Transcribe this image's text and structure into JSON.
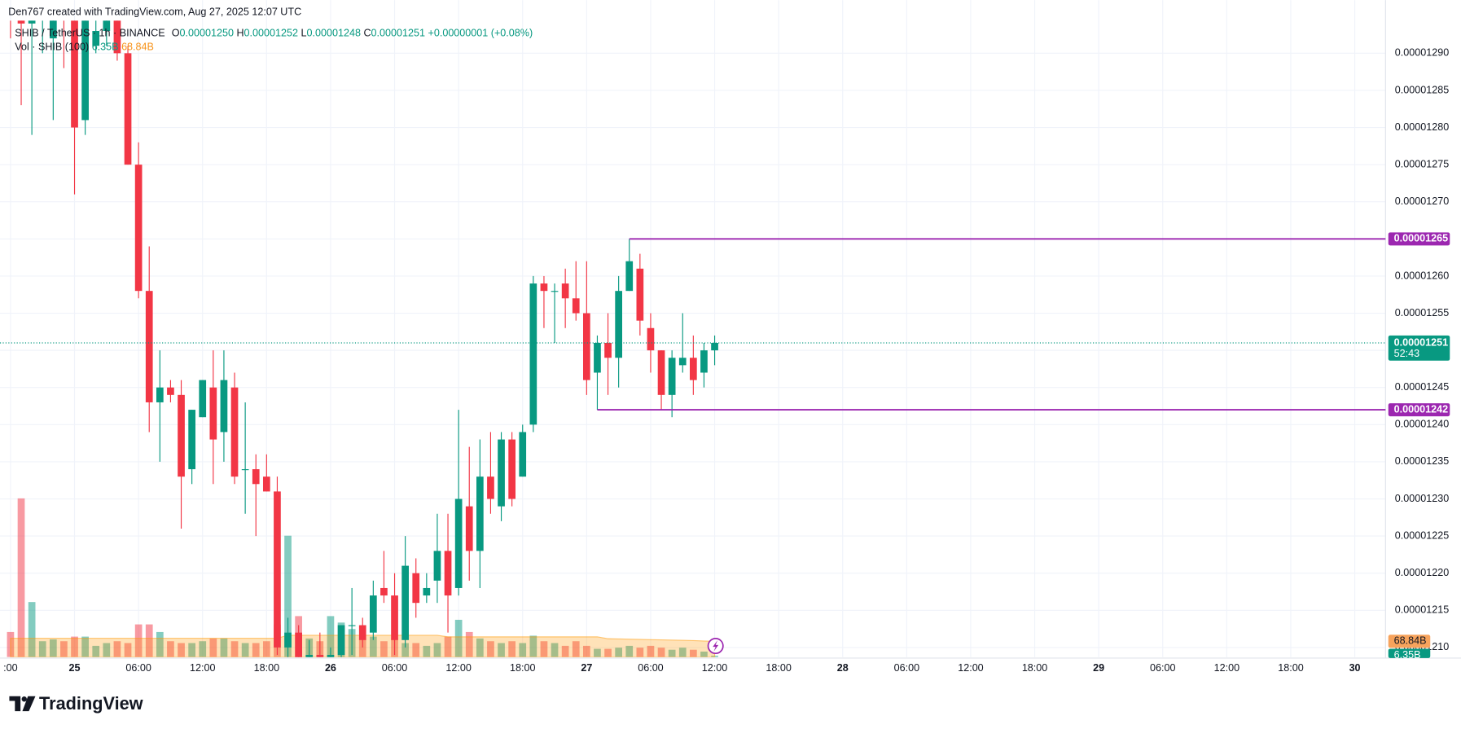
{
  "header": {
    "credit": "Den767 created with TradingView.com, Aug 27, 2025 12:07 UTC"
  },
  "footer": {
    "brand": "TradingView"
  },
  "chart_data": {
    "type": "candlestick",
    "title": "SHIB / TetherUS · 1h · BINANCE",
    "ohlc_legend": [
      {
        "label": "O",
        "value": "0.00001250"
      },
      {
        "label": "H",
        "value": "0.00001252"
      },
      {
        "label": "L",
        "value": "0.00001248"
      },
      {
        "label": "C",
        "value": "0.00001251"
      }
    ],
    "change": "+0.00000001 (+0.08%)",
    "volume_title": "Vol · SHIB (100)",
    "volume_value_label": "6.35B",
    "volume_ma_label": "68.84B",
    "x_labels": [
      ":00",
      "25",
      "06:00",
      "12:00",
      "18:00",
      "26",
      "06:00",
      "12:00",
      "18:00",
      "27",
      "06:00",
      "12:00",
      "18:00",
      "28",
      "06:00",
      "12:00",
      "18:00",
      "29",
      "06:00",
      "12:00",
      "18:00",
      "30"
    ],
    "open": [
      1.3e-05,
      1.296e-05,
      1.294e-05,
      1.297e-05,
      1.292e-05,
      1.298e-05,
      1.296e-05,
      1.281e-05,
      1.291e-05,
      1.293e-05,
      1.295e-05,
      1.29e-05,
      1.275e-05,
      1.258e-05,
      1.243e-05,
      1.245e-05,
      1.244e-05,
      1.234e-05,
      1.241e-05,
      1.245e-05,
      1.239e-05,
      1.245e-05,
      1.234e-05,
      1.234e-05,
      1.233e-05,
      1.231e-05,
      1.21e-05,
      1.212e-05,
      1.207e-05,
      1.209e-05,
      1.206e-05,
      1.209e-05,
      1.213e-05,
      1.213e-05,
      1.212e-05,
      1.218e-05,
      1.217e-05,
      1.211e-05,
      1.22e-05,
      1.217e-05,
      1.219e-05,
      1.223e-05,
      1.218e-05,
      1.229e-05,
      1.223e-05,
      1.233e-05,
      1.229e-05,
      1.238e-05,
      1.233e-05,
      1.24e-05,
      1.259e-05,
      1.258e-05,
      1.259e-05,
      1.257e-05,
      1.255e-05,
      1.247e-05,
      1.251e-05,
      1.249e-05,
      1.258e-05,
      1.261e-05,
      1.253e-05,
      1.25e-05,
      1.244e-05,
      1.248e-05,
      1.249e-05,
      1.247e-05,
      1.25e-05
    ],
    "high": [
      1.305e-05,
      1.3e-05,
      1.298e-05,
      1.302e-05,
      1.301e-05,
      1.3e-05,
      1.3e-05,
      1.298e-05,
      1.296e-05,
      1.298e-05,
      1.299e-05,
      1.291e-05,
      1.278e-05,
      1.264e-05,
      1.25e-05,
      1.246e-05,
      1.246e-05,
      1.242e-05,
      1.246e-05,
      1.25e-05,
      1.25e-05,
      1.247e-05,
      1.243e-05,
      1.236e-05,
      1.236e-05,
      1.233e-05,
      1.214e-05,
      1.213e-05,
      1.211e-05,
      1.212e-05,
      1.21e-05,
      1.213e-05,
      1.218e-05,
      1.214e-05,
      1.219e-05,
      1.223e-05,
      1.22e-05,
      1.225e-05,
      1.222e-05,
      1.22e-05,
      1.228e-05,
      1.228e-05,
      1.242e-05,
      1.237e-05,
      1.238e-05,
      1.239e-05,
      1.239e-05,
      1.239e-05,
      1.24e-05,
      1.26e-05,
      1.26e-05,
      1.259e-05,
      1.261e-05,
      1.262e-05,
      1.262e-05,
      1.252e-05,
      1.255e-05,
      1.26e-05,
      1.265e-05,
      1.263e-05,
      1.255e-05,
      1.25e-05,
      1.25e-05,
      1.255e-05,
      1.252e-05,
      1.251e-05,
      1.252e-05
    ],
    "low": [
      1.292e-05,
      1.283e-05,
      1.279e-05,
      1.29e-05,
      1.281e-05,
      1.288e-05,
      1.271e-05,
      1.279e-05,
      1.29e-05,
      1.291e-05,
      1.289e-05,
      1.275e-05,
      1.257e-05,
      1.239e-05,
      1.235e-05,
      1.243e-05,
      1.226e-05,
      1.232e-05,
      1.241e-05,
      1.232e-05,
      1.235e-05,
      1.232e-05,
      1.228e-05,
      1.225e-05,
      1.231e-05,
      1.209e-05,
      1.205e-05,
      1.204e-05,
      1.203e-05,
      1.204e-05,
      1.203e-05,
      1.206e-05,
      1.209e-05,
      1.21e-05,
      1.211e-05,
      1.216e-05,
      1.209e-05,
      1.21e-05,
      1.214e-05,
      1.216e-05,
      1.216e-05,
      1.212e-05,
      1.217e-05,
      1.219e-05,
      1.218e-05,
      1.228e-05,
      1.227e-05,
      1.229e-05,
      1.233e-05,
      1.239e-05,
      1.253e-05,
      1.251e-05,
      1.253e-05,
      1.254e-05,
      1.244e-05,
      1.242e-05,
      1.244e-05,
      1.245e-05,
      1.258e-05,
      1.252e-05,
      1.247e-05,
      1.242e-05,
      1.241e-05,
      1.247e-05,
      1.244e-05,
      1.245e-05,
      1.248e-05
    ],
    "close": [
      1.296e-05,
      1.294e-05,
      1.297e-05,
      1.299e-05,
      1.298e-05,
      1.296e-05,
      1.28e-05,
      1.296e-05,
      1.293e-05,
      1.295e-05,
      1.29e-05,
      1.275e-05,
      1.258e-05,
      1.243e-05,
      1.245e-05,
      1.244e-05,
      1.233e-05,
      1.242e-05,
      1.246e-05,
      1.238e-05,
      1.246e-05,
      1.233e-05,
      1.234e-05,
      1.232e-05,
      1.231e-05,
      1.21e-05,
      1.212e-05,
      1.207e-05,
      1.209e-05,
      1.206e-05,
      1.209e-05,
      1.213e-05,
      1.213e-05,
      1.211e-05,
      1.217e-05,
      1.217e-05,
      1.211e-05,
      1.221e-05,
      1.216e-05,
      1.218e-05,
      1.223e-05,
      1.217e-05,
      1.23e-05,
      1.223e-05,
      1.233e-05,
      1.23e-05,
      1.238e-05,
      1.23e-05,
      1.239e-05,
      1.259e-05,
      1.258e-05,
      1.258e-05,
      1.257e-05,
      1.255e-05,
      1.246e-05,
      1.251e-05,
      1.249e-05,
      1.258e-05,
      1.262e-05,
      1.254e-05,
      1.25e-05,
      1.244e-05,
      1.249e-05,
      1.249e-05,
      1.246e-05,
      1.25e-05,
      1.251e-05
    ],
    "volume": [
      109,
      689,
      239,
      69,
      77,
      69,
      89,
      89,
      49,
      61,
      69,
      61,
      142,
      142,
      109,
      69,
      61,
      61,
      69,
      81,
      81,
      69,
      61,
      61,
      69,
      142,
      527,
      178,
      81,
      69,
      178,
      150,
      122,
      81,
      89,
      69,
      81,
      61,
      61,
      49,
      61,
      89,
      162,
      109,
      81,
      69,
      61,
      69,
      61,
      93,
      69,
      61,
      49,
      69,
      49,
      36,
      36,
      41,
      49,
      41,
      49,
      41,
      32,
      41,
      32,
      24,
      6.35
    ],
    "volume_ma": [
      82,
      82,
      82,
      82,
      82,
      82,
      82,
      82,
      82,
      82,
      82,
      82,
      82,
      82,
      82,
      82,
      82,
      82,
      82,
      82,
      82,
      82,
      82,
      82,
      82,
      82,
      95,
      95,
      95,
      95,
      95,
      95,
      95,
      95,
      95,
      95,
      95,
      95,
      95,
      95,
      95,
      88,
      88,
      88,
      88,
      88,
      88,
      88,
      88,
      88,
      88,
      88,
      88,
      88,
      88,
      88,
      80,
      79,
      78,
      77,
      76,
      75,
      74,
      73,
      72,
      70,
      68.84
    ],
    "ylim": [
      1.2087e-05,
      1.29439e-05
    ],
    "yticks": [
      {
        "value": 1.21e-05,
        "label": "0.00001210"
      },
      {
        "value": 1.215e-05,
        "label": "0.00001215"
      },
      {
        "value": 1.22e-05,
        "label": "0.00001220"
      },
      {
        "value": 1.225e-05,
        "label": "0.00001225"
      },
      {
        "value": 1.23e-05,
        "label": "0.00001230"
      },
      {
        "value": 1.235e-05,
        "label": "0.00001235"
      },
      {
        "value": 1.24e-05,
        "label": "0.00001240"
      },
      {
        "value": 1.245e-05,
        "label": "0.00001245"
      },
      {
        "value": 1.25e-05,
        "label": "0.00001250"
      },
      {
        "value": 1.255e-05,
        "label": "0.00001255"
      },
      {
        "value": 1.26e-05,
        "label": "0.00001260"
      },
      {
        "value": 1.265e-05,
        "label": "0.00001265"
      },
      {
        "value": 1.27e-05,
        "label": "0.00001270"
      },
      {
        "value": 1.275e-05,
        "label": "0.00001275"
      },
      {
        "value": 1.28e-05,
        "label": "0.00001280"
      },
      {
        "value": 1.285e-05,
        "label": "0.00001285"
      },
      {
        "value": 1.29e-05,
        "label": "0.00001290"
      }
    ],
    "volume_ylim": [
      0,
      720
    ],
    "grid": true,
    "up_color": "#089981",
    "down_color": "#f23645",
    "ma_color": "#ff9800",
    "levels": [
      {
        "value": 1.265e-05,
        "color": "#9c27b0"
      },
      {
        "value": 1.242e-05,
        "color": "#9c27b0"
      }
    ],
    "current": {
      "price": 1.251e-05,
      "countdown": "52:43",
      "color": "#089981"
    }
  }
}
